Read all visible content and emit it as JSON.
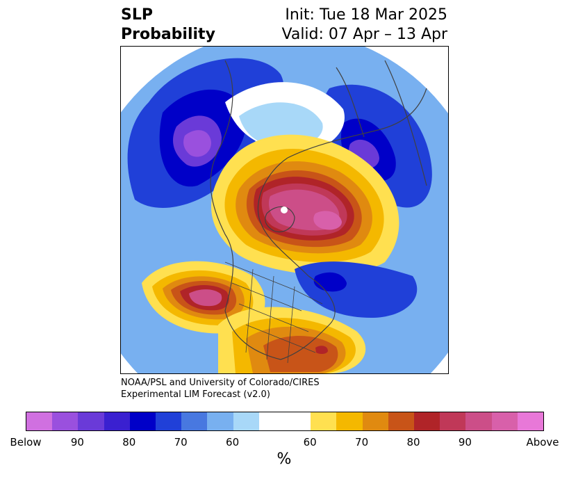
{
  "title": {
    "left_line1": "SLP",
    "left_line2": "Probability",
    "right_line1": "Init: Tue 18 Mar 2025",
    "right_line2": "Valid: 07 Apr – 13 Apr"
  },
  "credit": {
    "line1": "NOAA/PSL and University of Colorado/CIRES",
    "line2": "Experimental LIM Forecast (v2.0)"
  },
  "colorbar": {
    "unit": "%",
    "tick_labels": [
      "Below",
      "90",
      "80",
      "70",
      "60",
      "60",
      "70",
      "80",
      "90",
      "Above"
    ],
    "colors_below": [
      "#d070e0",
      "#9a50de",
      "#6a3ad8",
      "#3a20d0",
      "#0000c8",
      "#2040d8",
      "#4878e0",
      "#78b0f0",
      "#a8d8f8"
    ],
    "color_neutral": "#ffffff",
    "colors_above": [
      "#ffe050",
      "#f4b800",
      "#e08a10",
      "#c85418",
      "#b02428",
      "#c03858",
      "#cc4e88",
      "#d860aa",
      "#e878d8"
    ]
  },
  "map": {
    "projection": "north-polar-stereographic",
    "layers": [
      "slp-probability-shading",
      "coastlines",
      "country-borders",
      "us-state-borders"
    ]
  }
}
